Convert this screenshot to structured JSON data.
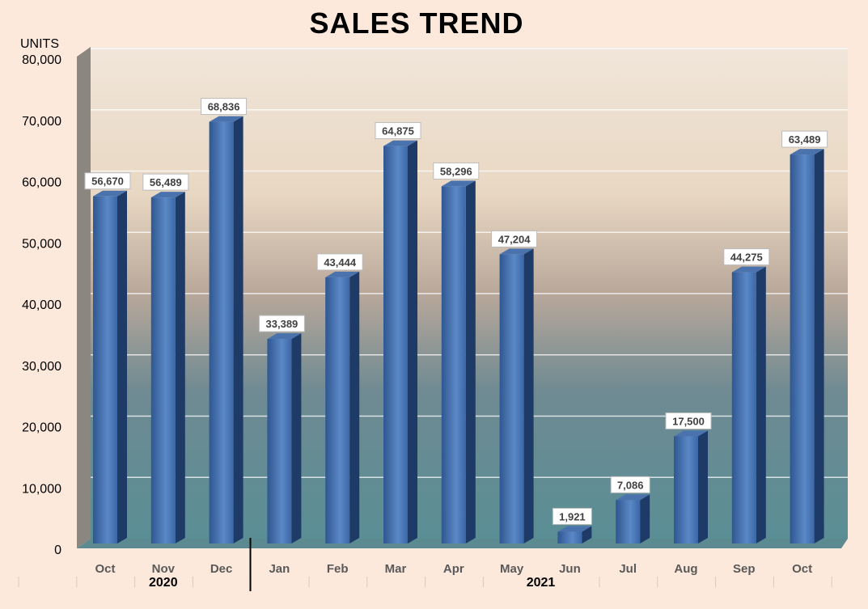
{
  "chart_data": {
    "type": "bar",
    "title": "SALES TREND",
    "ylabel": "UNITS",
    "xlabel": "",
    "ylim": [
      0,
      80000
    ],
    "yticks": [
      "0",
      "10,000",
      "20,000",
      "30,000",
      "40,000",
      "50,000",
      "60,000",
      "70,000",
      "80,000"
    ],
    "grid": true,
    "categories": [
      "Oct",
      "Nov",
      "Dec",
      "Jan",
      "Feb",
      "Mar",
      "Apr",
      "May",
      "Jun",
      "Jul",
      "Aug",
      "Sep",
      "Oct"
    ],
    "values": [
      56670,
      56489,
      68836,
      33389,
      43444,
      64875,
      58296,
      47204,
      1921,
      7086,
      17500,
      44275,
      63489
    ],
    "data_labels": [
      "56,670",
      "56,489",
      "68,836",
      "33,389",
      "43,444",
      "64,875",
      "58,296",
      "47,204",
      "1,921",
      "7,086",
      "17,500",
      "44,275",
      "63,489"
    ],
    "groups": [
      {
        "label": "2020",
        "count": 3
      },
      {
        "label": "2021",
        "count": 10
      }
    ],
    "bar_color": "#3d67a6"
  }
}
